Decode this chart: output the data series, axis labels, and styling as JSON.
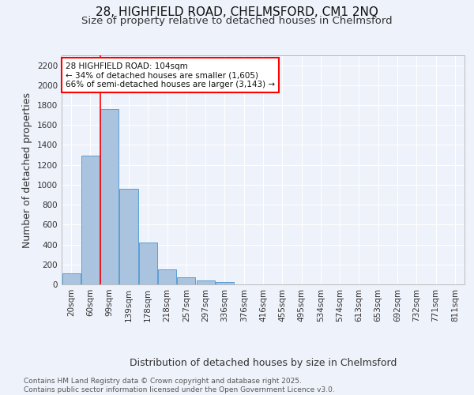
{
  "title_line1": "28, HIGHFIELD ROAD, CHELMSFORD, CM1 2NQ",
  "title_line2": "Size of property relative to detached houses in Chelmsford",
  "xlabel": "Distribution of detached houses by size in Chelmsford",
  "ylabel": "Number of detached properties",
  "footnote": "Contains HM Land Registry data © Crown copyright and database right 2025.\nContains public sector information licensed under the Open Government Licence v3.0.",
  "categories": [
    "20sqm",
    "60sqm",
    "99sqm",
    "139sqm",
    "178sqm",
    "218sqm",
    "257sqm",
    "297sqm",
    "336sqm",
    "376sqm",
    "416sqm",
    "455sqm",
    "495sqm",
    "534sqm",
    "574sqm",
    "613sqm",
    "653sqm",
    "692sqm",
    "732sqm",
    "771sqm",
    "811sqm"
  ],
  "bar_values": [
    108,
    1290,
    1760,
    960,
    420,
    150,
    70,
    40,
    25,
    0,
    0,
    0,
    0,
    0,
    0,
    0,
    0,
    0,
    0,
    0,
    0
  ],
  "bar_color": "#aac4e0",
  "bar_edge_color": "#5a9fd4",
  "vline_color": "red",
  "annotation_text": "28 HIGHFIELD ROAD: 104sqm\n← 34% of detached houses are smaller (1,605)\n66% of semi-detached houses are larger (3,143) →",
  "ylim": [
    0,
    2300
  ],
  "yticks": [
    0,
    200,
    400,
    600,
    800,
    1000,
    1200,
    1400,
    1600,
    1800,
    2000,
    2200
  ],
  "bg_color": "#eef2fa",
  "plot_bg_color": "#eef2fa",
  "grid_color": "white",
  "title_fontsize": 11,
  "subtitle_fontsize": 9.5,
  "tick_fontsize": 7.5,
  "label_fontsize": 9,
  "footnote_fontsize": 6.5
}
